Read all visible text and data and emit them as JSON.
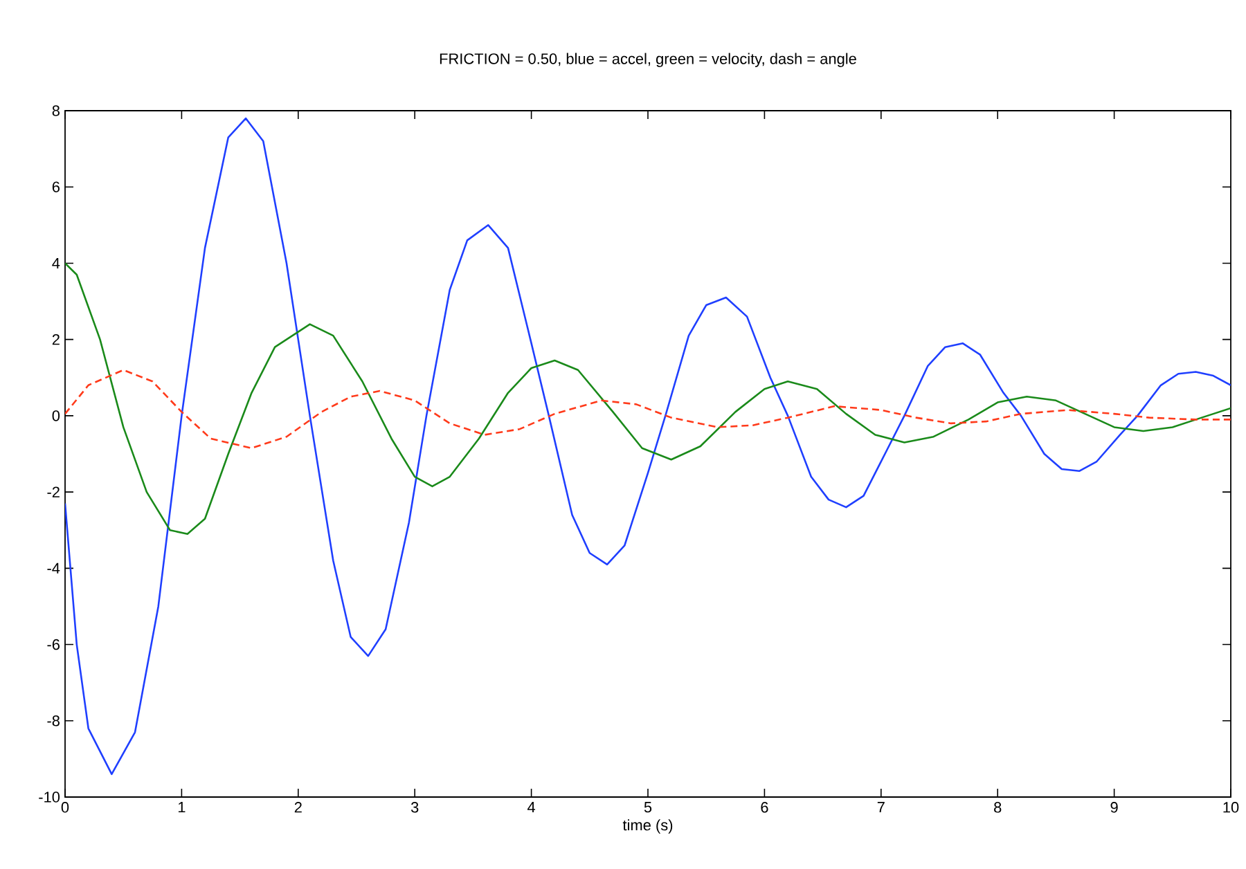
{
  "chart_data": {
    "type": "line",
    "title": "FRICTION = 0.50, blue = accel, green = velocity, dash = angle",
    "xlabel": "time (s)",
    "xlim": [
      0,
      10
    ],
    "xticks": [
      0,
      1,
      2,
      3,
      4,
      5,
      6,
      7,
      8,
      9,
      10
    ],
    "ylim": [
      -10,
      8
    ],
    "yticks": [
      -10,
      -8,
      -6,
      -4,
      -2,
      0,
      2,
      4,
      6,
      8
    ],
    "series": [
      {
        "color": "#1f3fff",
        "line_style": "solid",
        "x": [
          0,
          0.1,
          0.2,
          0.4,
          0.6,
          0.8,
          1.0,
          1.2,
          1.4,
          1.55,
          1.7,
          1.9,
          2.1,
          2.3,
          2.45,
          2.6,
          2.75,
          2.95,
          3.1,
          3.3,
          3.45,
          3.63,
          3.8,
          4.0,
          4.15,
          4.35,
          4.5,
          4.65,
          4.8,
          5.0,
          5.15,
          5.35,
          5.5,
          5.67,
          5.85,
          6.05,
          6.2,
          6.4,
          6.55,
          6.7,
          6.85,
          7.05,
          7.2,
          7.4,
          7.55,
          7.7,
          7.85,
          8.05,
          8.2,
          8.4,
          8.55,
          8.7,
          8.85,
          9.05,
          9.2,
          9.4,
          9.55,
          9.7,
          9.85,
          10
        ],
        "values": [
          -2.3,
          -6.0,
          -8.2,
          -9.4,
          -8.3,
          -5.0,
          0,
          4.4,
          7.3,
          7.8,
          7.2,
          4.0,
          0,
          -3.8,
          -5.8,
          -6.3,
          -5.6,
          -2.8,
          0,
          3.3,
          4.6,
          5.0,
          4.4,
          1.9,
          0,
          -2.6,
          -3.6,
          -3.9,
          -3.4,
          -1.5,
          0,
          2.1,
          2.9,
          3.1,
          2.6,
          1.0,
          0,
          -1.6,
          -2.2,
          -2.4,
          -2.1,
          -0.9,
          0,
          1.3,
          1.8,
          1.9,
          1.6,
          0.6,
          0,
          -1.0,
          -1.4,
          -1.45,
          -1.2,
          -0.5,
          0,
          0.8,
          1.1,
          1.15,
          1.05,
          0.8
        ]
      },
      {
        "color": "#1a8a1a",
        "line_style": "solid",
        "x": [
          0,
          0.1,
          0.3,
          0.5,
          0.7,
          0.9,
          1.05,
          1.2,
          1.4,
          1.6,
          1.8,
          2.1,
          2.3,
          2.55,
          2.8,
          3.0,
          3.15,
          3.3,
          3.55,
          3.8,
          4.0,
          4.2,
          4.4,
          4.7,
          4.95,
          5.2,
          5.45,
          5.75,
          6.0,
          6.2,
          6.45,
          6.7,
          6.95,
          7.2,
          7.45,
          7.75,
          8.0,
          8.25,
          8.5,
          8.75,
          9.0,
          9.25,
          9.5,
          9.75,
          10
        ],
        "values": [
          4.0,
          3.7,
          2.0,
          -0.3,
          -2.0,
          -3.0,
          -3.1,
          -2.7,
          -1.0,
          0.6,
          1.8,
          2.4,
          2.1,
          0.9,
          -0.6,
          -1.6,
          -1.85,
          -1.6,
          -0.6,
          0.6,
          1.25,
          1.45,
          1.2,
          0.1,
          -0.85,
          -1.15,
          -0.8,
          0.1,
          0.7,
          0.9,
          0.7,
          0.05,
          -0.5,
          -0.7,
          -0.55,
          -0.1,
          0.35,
          0.5,
          0.4,
          0.05,
          -0.3,
          -0.4,
          -0.3,
          -0.05,
          0.2
        ]
      },
      {
        "color": "#ff3a1a",
        "line_style": "dashed",
        "x": [
          0,
          0.2,
          0.5,
          0.75,
          1.0,
          1.25,
          1.6,
          1.9,
          2.2,
          2.45,
          2.7,
          3.0,
          3.3,
          3.6,
          3.9,
          4.2,
          4.6,
          4.9,
          5.2,
          5.6,
          5.9,
          6.2,
          6.6,
          7.0,
          7.3,
          7.6,
          7.9,
          8.2,
          8.6,
          9.0,
          9.3,
          9.7,
          10
        ],
        "values": [
          0.05,
          0.8,
          1.2,
          0.9,
          0.1,
          -0.6,
          -0.85,
          -0.55,
          0.1,
          0.5,
          0.65,
          0.4,
          -0.2,
          -0.5,
          -0.35,
          0.05,
          0.4,
          0.3,
          -0.05,
          -0.3,
          -0.25,
          -0.05,
          0.25,
          0.15,
          -0.05,
          -0.2,
          -0.15,
          0.05,
          0.15,
          0.05,
          -0.05,
          -0.1,
          -0.1
        ]
      }
    ]
  }
}
